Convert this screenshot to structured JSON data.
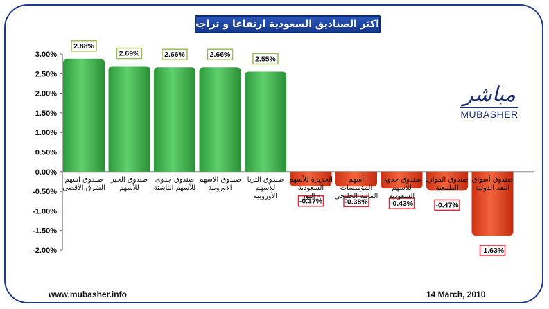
{
  "title": "اكثر الصناديق السعودية ارتفاعا و تراجعا",
  "footer": {
    "website": "www.mubasher.info",
    "date": "14 March, 2010"
  },
  "logo": {
    "arabic": "مباشر",
    "latin": "MUBASHER"
  },
  "colors": {
    "positive": "#3bb54a",
    "negative": "#e8431f",
    "frame": "#1f3a8a",
    "positive_label_border": "#9bbb59",
    "negative_label_border": "#e0283a"
  },
  "chart_data": {
    "type": "bar",
    "title": "اكثر الصناديق السعودية ارتفاعا و تراجعا",
    "xlabel": "",
    "ylabel": "",
    "ylim": [
      -2.0,
      3.0
    ],
    "yticks": [
      "3.00%",
      "2.50%",
      "2.00%",
      "1.50%",
      "1.00%",
      "0.50%",
      "0.00%",
      "-0.50%",
      "-1.00%",
      "-1.50%",
      "-2.00%"
    ],
    "ytick_values": [
      3.0,
      2.5,
      2.0,
      1.5,
      1.0,
      0.5,
      0.0,
      -0.5,
      -1.0,
      -1.5,
      -2.0
    ],
    "grid": false,
    "categories": [
      [
        "صندوق اسهم",
        "الشرق الأقصى"
      ],
      [
        "صندوق الخير",
        "للأسهم"
      ],
      [
        "صندوق جدوى",
        "للأسهم الناشئة"
      ],
      [
        "صندوق الاسهم",
        "الاوروبية"
      ],
      [
        "صندوق الثريا",
        "للأسهم",
        "الأوروبية"
      ],
      [
        "الجزيرة للأسهم",
        "السعودية",
        "- النور"
      ],
      [
        "أسهم",
        "المؤسسات",
        "المالية الخليجي"
      ],
      [
        "صندوق جدوى",
        "للأسهم",
        "السعودية"
      ],
      [
        "صندوق الموارد",
        "الطبيعية"
      ],
      [
        "صندوق أسواق",
        "النقد الدولية"
      ]
    ],
    "values": [
      2.88,
      2.69,
      2.66,
      2.66,
      2.55,
      -0.37,
      -0.38,
      -0.43,
      -0.47,
      -1.63
    ],
    "value_labels": [
      "2.88%",
      "2.69%",
      "2.66%",
      "2.66%",
      "2.55%",
      "-0.37%",
      "-0.38%",
      "-0.43%",
      "-0.47%",
      "-1.63%"
    ]
  }
}
